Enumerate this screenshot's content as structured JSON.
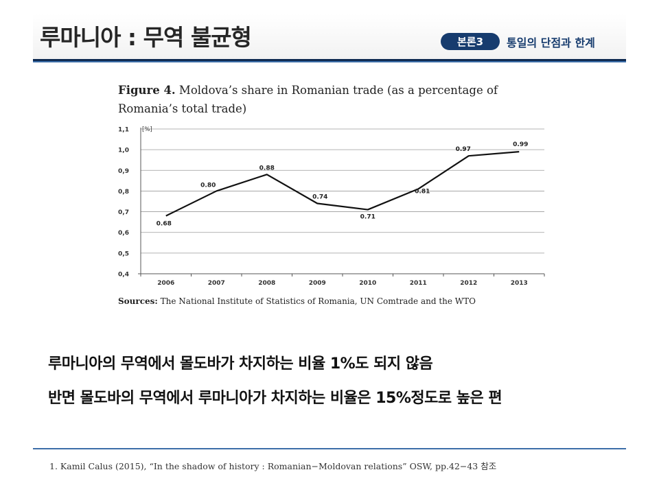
{
  "header": {
    "title": "루마니아 : 무역 불균형",
    "badge": "본론3",
    "section": "통일의 단점과 한계"
  },
  "figure": {
    "title_prefix": "Figure 4.",
    "title_text": " Moldova’s share in Romanian trade (as a percentage of Romania’s total trade)",
    "sources_label": "Sources:",
    "sources_text": " The National Institute of Statistics of Romania, UN Comtrade and the WTO"
  },
  "chart_data": {
    "type": "line",
    "categories": [
      "2006",
      "2007",
      "2008",
      "2009",
      "2010",
      "2011",
      "2012",
      "2013"
    ],
    "series": [
      {
        "values": [
          0.68,
          0.8,
          0.88,
          0.74,
          0.71,
          0.81,
          0.97,
          0.99
        ]
      }
    ],
    "data_labels": [
      "0.68",
      "0.80",
      "0.88",
      "0.74",
      "0.71",
      "0.81",
      "0.97",
      "0.99"
    ],
    "ylabel": "[%]",
    "ylim": [
      0.4,
      1.1
    ],
    "yticks": [
      "0,4",
      "0,5",
      "0,6",
      "0,7",
      "0,8",
      "0,9",
      "1,0",
      "1,1"
    ],
    "grid": true,
    "line_color": "#111111"
  },
  "body": {
    "line1": "루마니아의 무역에서 몰도바가 차지하는 비율 1%도 되지 않음",
    "line2": "반면 몰도바의 무역에서 루마니아가 차지하는 비율은 15%정도로 높은 편"
  },
  "footnote": "1.  Kamil Calus (2015), “In the shadow of history : Romanian−Moldovan relations” OSW, pp.42−43 참조",
  "colors": {
    "accent": "#173c6e",
    "rule": "#3b6da8"
  }
}
